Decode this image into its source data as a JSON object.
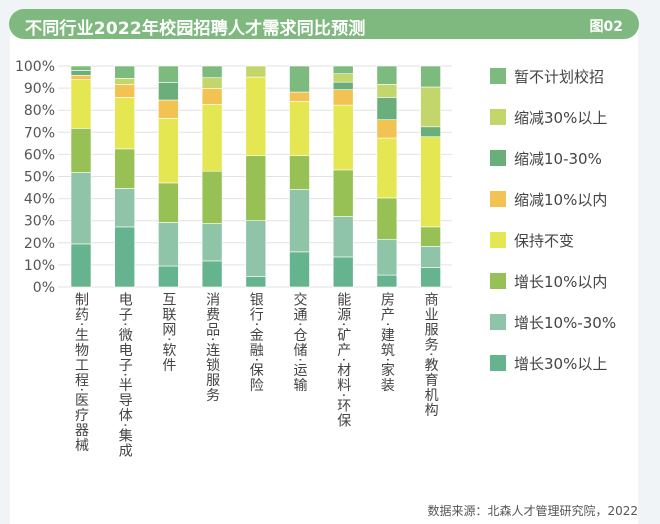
{
  "header": {
    "title": "不同行业2022年校园招聘人才需求同比预测",
    "figure_no": "图02"
  },
  "source": "数据来源：北森人才管理研究院，2022",
  "chart_data": {
    "type": "bar",
    "stacked": true,
    "orientation": "vertical",
    "title": "不同行业2022年校园招聘人才需求同比预测",
    "ylim": [
      0,
      100
    ],
    "yticks": [
      "0%",
      "10%",
      "20%",
      "30%",
      "40%",
      "50%",
      "60%",
      "70%",
      "80%",
      "90%",
      "100%"
    ],
    "grid": true,
    "legend_position": "right",
    "categories": [
      "制药·生物工程·医疗器械",
      "电子·微电子·半导体·集成",
      "互联网·软件",
      "消费品·连锁服务",
      "银行·金融·保险",
      "交通·仓储·运输",
      "能源·矿产·材料·环保",
      "房产·建筑·家装",
      "商业服务·教育机构"
    ],
    "series": [
      {
        "name": "增长30%以上",
        "color": "#66b48f",
        "values": [
          19.5,
          27.2,
          9.5,
          11.8,
          4.8,
          15.9,
          13.6,
          5.4,
          8.8
        ]
      },
      {
        "name": "增长10%-30%",
        "color": "#8fc4a9",
        "values": [
          32.3,
          17.4,
          19.7,
          16.9,
          25.2,
          28.2,
          18.3,
          16.2,
          9.6
        ]
      },
      {
        "name": "增长10%以内",
        "color": "#97c055",
        "values": [
          20.0,
          17.9,
          17.9,
          23.7,
          29.4,
          15.3,
          21.1,
          18.7,
          8.8
        ]
      },
      {
        "name": "保持不变",
        "color": "#e4e652",
        "values": [
          22.0,
          23.3,
          29.2,
          30.2,
          35.6,
          24.6,
          29.3,
          27.1,
          40.8
        ]
      },
      {
        "name": "缩减10%以内",
        "color": "#f2c353",
        "values": [
          2.0,
          5.9,
          8.3,
          7.3,
          0,
          4.2,
          7.0,
          8.3,
          0
        ]
      },
      {
        "name": "缩减10-30%",
        "color": "#6aaf7b",
        "values": [
          2.2,
          0,
          8.0,
          0,
          0,
          0,
          3.4,
          10.1,
          4.5
        ]
      },
      {
        "name": "缩减30%以上",
        "color": "#c3d66b",
        "values": [
          0,
          2.7,
          0,
          4.8,
          5.0,
          0,
          3.8,
          5.9,
          18.0
        ]
      },
      {
        "name": "暂不计划校招",
        "color": "#7dba7d",
        "values": [
          2.0,
          5.6,
          7.4,
          5.3,
          0,
          11.8,
          3.5,
          8.3,
          9.5
        ]
      }
    ]
  }
}
